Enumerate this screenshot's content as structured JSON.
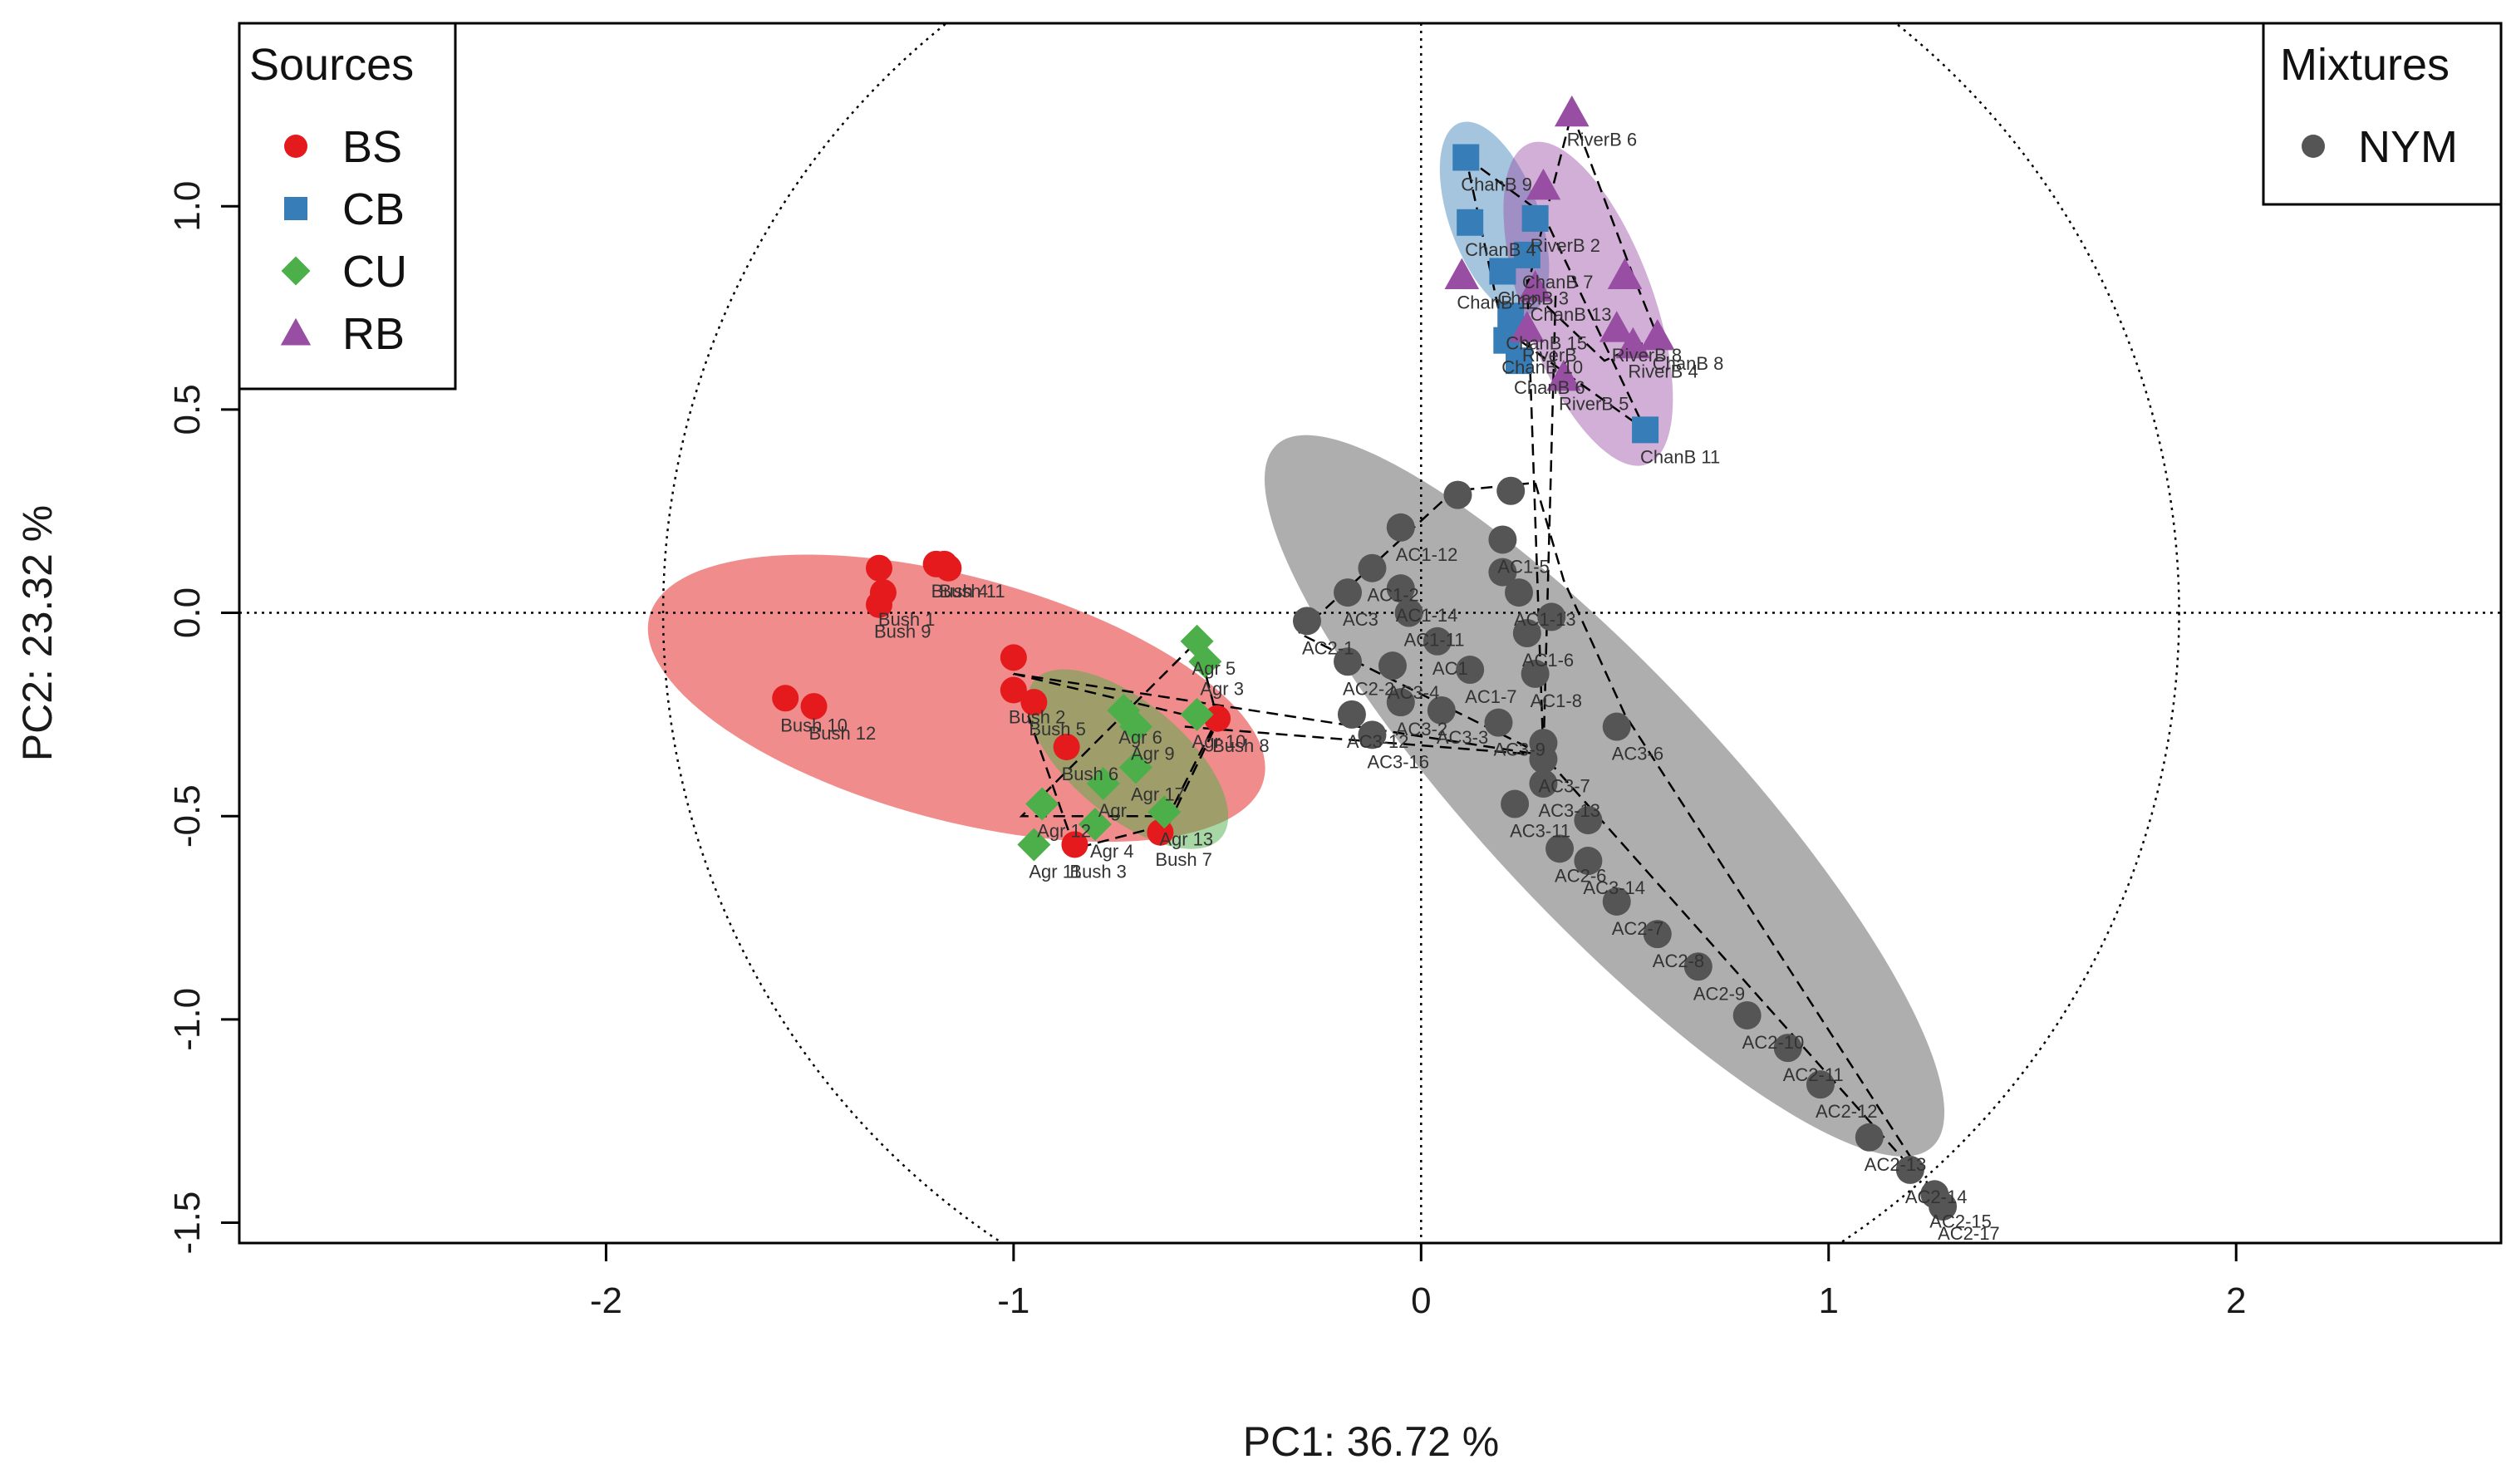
{
  "chart_data": {
    "type": "scatter",
    "title": "",
    "xlabel": "PC1: 36.72 %",
    "ylabel": "PC2: 23.32 %",
    "xlim": [
      -2.9,
      2.65
    ],
    "ylim": [
      -1.55,
      1.45
    ],
    "xticks": [
      -2,
      -1,
      0,
      1,
      2
    ],
    "yticks": [
      -1.5,
      -1.0,
      -0.5,
      0.0,
      0.5,
      1.0
    ],
    "xtick_labels": [
      "-2",
      "-1",
      "0",
      "1",
      "2"
    ],
    "ytick_labels": [
      "-1.5",
      "-1.0",
      "-0.5",
      "0.0",
      "0.5",
      "1.0"
    ],
    "reference_lines": {
      "x": 0,
      "y": 0
    },
    "circle": {
      "center": [
        0,
        0
      ],
      "radius": 1.86
    },
    "legend_sources": {
      "title": "Sources",
      "position": "top-left",
      "items": [
        {
          "key": "BS",
          "label": "BS",
          "color": "#e41a1c",
          "shape": "circle"
        },
        {
          "key": "CB",
          "label": "CB",
          "color": "#377eb8",
          "shape": "square"
        },
        {
          "key": "CU",
          "label": "CU",
          "color": "#4daf4a",
          "shape": "diamond"
        },
        {
          "key": "RB",
          "label": "RB",
          "color": "#984ea3",
          "shape": "triangle"
        }
      ]
    },
    "legend_mixtures": {
      "title": "Mixtures",
      "position": "top-right",
      "items": [
        {
          "key": "NYM",
          "label": "NYM",
          "color": "#555555",
          "shape": "circle"
        }
      ]
    },
    "ellipses": [
      {
        "group": "NYM",
        "center": [
          0.45,
          -0.45
        ],
        "rx": 1.18,
        "ry": 0.3,
        "angle": -47,
        "color": "#8c8c8c",
        "opacity": 0.7
      },
      {
        "group": "BS",
        "center": [
          -1.14,
          -0.21
        ],
        "rx": 0.78,
        "ry": 0.3,
        "angle": -15,
        "color": "#e41a1c",
        "opacity": 0.5
      },
      {
        "group": "CU",
        "center": [
          -0.72,
          -0.36
        ],
        "rx": 0.3,
        "ry": 0.14,
        "angle": -40,
        "color": "#4daf4a",
        "opacity": 0.5
      },
      {
        "group": "CB",
        "center": [
          0.18,
          0.97
        ],
        "rx": 0.25,
        "ry": 0.11,
        "angle": -70,
        "color": "#377eb8",
        "opacity": 0.45
      },
      {
        "group": "RB",
        "center": [
          0.41,
          0.76
        ],
        "rx": 0.42,
        "ry": 0.16,
        "angle": -70,
        "color": "#984ea3",
        "opacity": 0.45
      }
    ],
    "hull_paths": [
      {
        "group": "NYM",
        "points": [
          [
            -0.3,
            -0.05
          ],
          [
            0.08,
            0.3
          ],
          [
            0.28,
            0.32
          ],
          [
            0.35,
            0.08
          ],
          [
            0.5,
            -0.25
          ],
          [
            1.26,
            -1.43
          ],
          [
            0.3,
            -0.35
          ],
          [
            -0.3,
            -0.05
          ]
        ]
      },
      {
        "group": "BS",
        "points": [
          [
            -1.0,
            -0.15
          ],
          [
            -0.5,
            -0.27
          ],
          [
            -0.62,
            -0.52
          ],
          [
            -0.85,
            -0.58
          ],
          [
            -1.0,
            -0.15
          ]
        ]
      },
      {
        "group": "CU",
        "points": [
          [
            -0.55,
            -0.07
          ],
          [
            -0.5,
            -0.26
          ],
          [
            -0.62,
            -0.5
          ],
          [
            -0.98,
            -0.5
          ],
          [
            -0.73,
            -0.25
          ],
          [
            -0.55,
            -0.07
          ]
        ]
      },
      {
        "group": "CB",
        "points": [
          [
            0.11,
            1.12
          ],
          [
            0.3,
            0.98
          ],
          [
            0.55,
            0.45
          ],
          [
            0.2,
            0.7
          ],
          [
            0.11,
            1.12
          ]
        ]
      },
      {
        "group": "RB",
        "points": [
          [
            0.37,
            1.23
          ],
          [
            0.52,
            0.83
          ],
          [
            0.58,
            0.68
          ],
          [
            0.45,
            0.62
          ],
          [
            0.26,
            0.8
          ],
          [
            0.37,
            1.23
          ]
        ]
      }
    ],
    "centroid_links": [
      {
        "from": [
          -1.0,
          -0.15
        ],
        "to": [
          0.3,
          -0.35
        ]
      },
      {
        "from": [
          -0.58,
          -0.28
        ],
        "to": [
          0.3,
          -0.35
        ]
      },
      {
        "from": [
          0.26,
          0.82
        ],
        "to": [
          0.3,
          -0.35
        ]
      },
      {
        "from": [
          0.33,
          0.78
        ],
        "to": [
          0.3,
          -0.35
        ]
      }
    ],
    "series": [
      {
        "name": "BS",
        "color": "#e41a1c",
        "shape": "circle",
        "points": [
          {
            "x": -1.33,
            "y": 0.11,
            "label": ""
          },
          {
            "x": -1.32,
            "y": 0.05,
            "label": "Bush 1"
          },
          {
            "x": -1.19,
            "y": 0.12,
            "label": "Bush 4"
          },
          {
            "x": -1.17,
            "y": 0.12,
            "label": "Bush 11"
          },
          {
            "x": -1.16,
            "y": 0.11,
            "label": ""
          },
          {
            "x": -1.33,
            "y": 0.02,
            "label": "Bush 9"
          },
          {
            "x": -1.56,
            "y": -0.21,
            "label": "Bush 10"
          },
          {
            "x": -1.49,
            "y": -0.23,
            "label": "Bush 12"
          },
          {
            "x": -1.0,
            "y": -0.11,
            "label": ""
          },
          {
            "x": -1.0,
            "y": -0.19,
            "label": "Bush 2"
          },
          {
            "x": -0.95,
            "y": -0.22,
            "label": "Bush 5"
          },
          {
            "x": -0.87,
            "y": -0.33,
            "label": "Bush 6"
          },
          {
            "x": -0.85,
            "y": -0.57,
            "label": "Bush 3"
          },
          {
            "x": -0.64,
            "y": -0.54,
            "label": "Bush 7"
          },
          {
            "x": -0.5,
            "y": -0.26,
            "label": "Bush 8"
          }
        ]
      },
      {
        "name": "CU",
        "color": "#4daf4a",
        "shape": "diamond",
        "points": [
          {
            "x": -0.55,
            "y": -0.07,
            "label": "Agr 5"
          },
          {
            "x": -0.53,
            "y": -0.12,
            "label": "Agr 3"
          },
          {
            "x": -0.55,
            "y": -0.25,
            "label": "Agr 10"
          },
          {
            "x": -0.73,
            "y": -0.24,
            "label": "Agr 6"
          },
          {
            "x": -0.7,
            "y": -0.28,
            "label": "Agr 9"
          },
          {
            "x": -0.78,
            "y": -0.42,
            "label": "Agr"
          },
          {
            "x": -0.7,
            "y": -0.38,
            "label": "Agr 17"
          },
          {
            "x": -0.93,
            "y": -0.47,
            "label": "Agr 12"
          },
          {
            "x": -0.8,
            "y": -0.52,
            "label": "Agr 4"
          },
          {
            "x": -0.63,
            "y": -0.49,
            "label": "Agr 13"
          },
          {
            "x": -0.95,
            "y": -0.57,
            "label": "Agr 11"
          }
        ]
      },
      {
        "name": "CB",
        "color": "#377eb8",
        "shape": "square",
        "points": [
          {
            "x": 0.11,
            "y": 1.12,
            "label": "ChanB 9"
          },
          {
            "x": 0.12,
            "y": 0.96,
            "label": "ChanB 4"
          },
          {
            "x": 0.28,
            "y": 0.97,
            "label": "RiverB 2"
          },
          {
            "x": 0.26,
            "y": 0.88,
            "label": "ChanB 7"
          },
          {
            "x": 0.2,
            "y": 0.84,
            "label": "ChanB 3"
          },
          {
            "x": 0.22,
            "y": 0.73,
            "label": "ChanB 15"
          },
          {
            "x": 0.21,
            "y": 0.67,
            "label": "ChanB 10"
          },
          {
            "x": 0.24,
            "y": 0.62,
            "label": "ChanB 6"
          },
          {
            "x": 0.55,
            "y": 0.45,
            "label": "ChanB 11"
          }
        ]
      },
      {
        "name": "RB",
        "color": "#984ea3",
        "shape": "triangle",
        "points": [
          {
            "x": 0.37,
            "y": 1.23,
            "label": "RiverB 6"
          },
          {
            "x": 0.3,
            "y": 1.05,
            "label": ""
          },
          {
            "x": 0.1,
            "y": 0.83,
            "label": "ChanB 12"
          },
          {
            "x": 0.28,
            "y": 0.8,
            "label": "ChanB 13"
          },
          {
            "x": 0.5,
            "y": 0.83,
            "label": ""
          },
          {
            "x": 0.48,
            "y": 0.7,
            "label": "RiverB 8"
          },
          {
            "x": 0.52,
            "y": 0.66,
            "label": "RiverB 4"
          },
          {
            "x": 0.58,
            "y": 0.68,
            "label": "ChanB 8"
          },
          {
            "x": 0.26,
            "y": 0.7,
            "label": "RiverB"
          },
          {
            "x": 0.35,
            "y": 0.58,
            "label": "RiverB 5"
          }
        ]
      },
      {
        "name": "NYM",
        "color": "#555555",
        "shape": "circle",
        "points": [
          {
            "x": 0.09,
            "y": 0.29,
            "label": ""
          },
          {
            "x": 0.22,
            "y": 0.3,
            "label": ""
          },
          {
            "x": -0.05,
            "y": 0.21,
            "label": "AC1-12"
          },
          {
            "x": 0.2,
            "y": 0.18,
            "label": "AC1-5"
          },
          {
            "x": -0.12,
            "y": 0.11,
            "label": "AC1-2"
          },
          {
            "x": 0.2,
            "y": 0.1,
            "label": ""
          },
          {
            "x": -0.05,
            "y": 0.06,
            "label": "AC1-14"
          },
          {
            "x": -0.18,
            "y": 0.05,
            "label": "AC3"
          },
          {
            "x": 0.24,
            "y": 0.05,
            "label": "AC1-13"
          },
          {
            "x": -0.03,
            "y": 0.0,
            "label": "AC1-11"
          },
          {
            "x": 0.32,
            "y": -0.01,
            "label": ""
          },
          {
            "x": -0.28,
            "y": -0.02,
            "label": "AC2-1"
          },
          {
            "x": 0.04,
            "y": -0.07,
            "label": "AC1"
          },
          {
            "x": 0.26,
            "y": -0.05,
            "label": "AC1-6"
          },
          {
            "x": -0.18,
            "y": -0.12,
            "label": "AC2-2"
          },
          {
            "x": -0.07,
            "y": -0.13,
            "label": "AC3-4"
          },
          {
            "x": 0.12,
            "y": -0.14,
            "label": "AC1-7"
          },
          {
            "x": 0.28,
            "y": -0.15,
            "label": "AC1-8"
          },
          {
            "x": -0.05,
            "y": -0.22,
            "label": "AC3-2"
          },
          {
            "x": 0.05,
            "y": -0.24,
            "label": "AC3-3"
          },
          {
            "x": -0.17,
            "y": -0.25,
            "label": "AC3-12"
          },
          {
            "x": 0.19,
            "y": -0.27,
            "label": "AC3-9"
          },
          {
            "x": -0.12,
            "y": -0.3,
            "label": "AC3-16"
          },
          {
            "x": 0.3,
            "y": -0.32,
            "label": ""
          },
          {
            "x": 0.48,
            "y": -0.28,
            "label": "AC3-6"
          },
          {
            "x": 0.3,
            "y": -0.36,
            "label": "AC3-7"
          },
          {
            "x": 0.3,
            "y": -0.42,
            "label": "AC3-13"
          },
          {
            "x": 0.23,
            "y": -0.47,
            "label": "AC3-11"
          },
          {
            "x": 0.41,
            "y": -0.51,
            "label": ""
          },
          {
            "x": 0.34,
            "y": -0.58,
            "label": "AC2-6"
          },
          {
            "x": 0.41,
            "y": -0.61,
            "label": "AC3-14"
          },
          {
            "x": 0.48,
            "y": -0.71,
            "label": "AC2-7"
          },
          {
            "x": 0.58,
            "y": -0.79,
            "label": "AC2-8"
          },
          {
            "x": 0.68,
            "y": -0.87,
            "label": "AC2-9"
          },
          {
            "x": 0.8,
            "y": -0.99,
            "label": "AC2-10"
          },
          {
            "x": 0.9,
            "y": -1.07,
            "label": "AC2-11"
          },
          {
            "x": 0.98,
            "y": -1.16,
            "label": "AC2-12"
          },
          {
            "x": 1.1,
            "y": -1.29,
            "label": "AC2-13"
          },
          {
            "x": 1.2,
            "y": -1.37,
            "label": "AC2-14"
          },
          {
            "x": 1.26,
            "y": -1.43,
            "label": "AC2-15"
          },
          {
            "x": 1.28,
            "y": -1.46,
            "label": "AC2-17"
          }
        ]
      }
    ]
  }
}
